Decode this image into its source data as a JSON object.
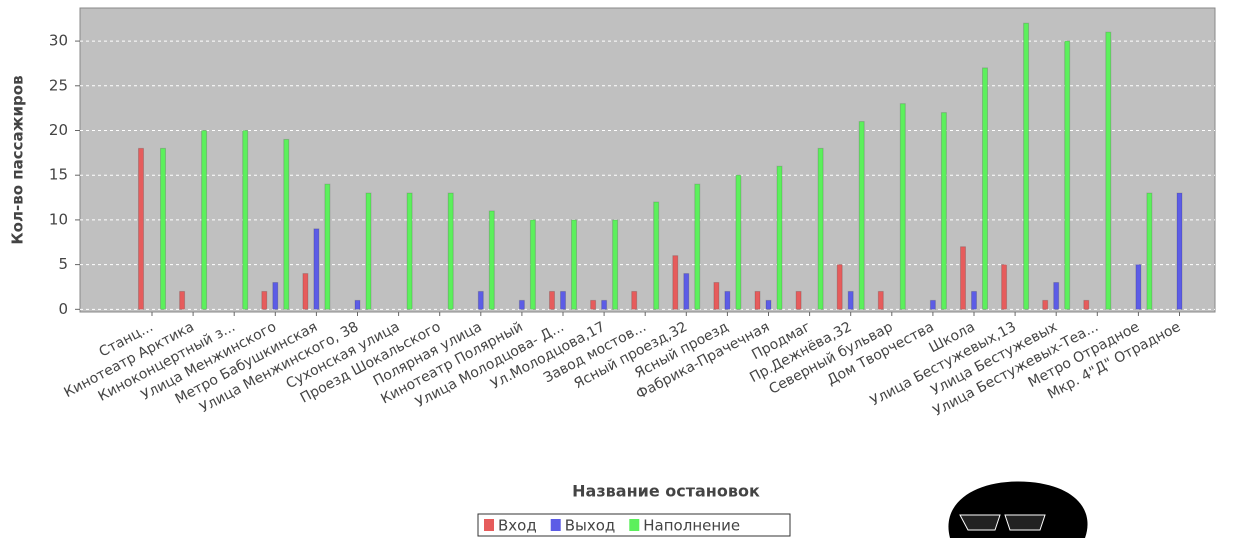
{
  "chart_data": {
    "type": "bar",
    "x_label": "Название остановок",
    "y_label": "Кол-во пассажиров",
    "categories": [
      "Станц...",
      "Кинотеатр Арктика",
      "Киноконцертный з...",
      "Улица Менжинского",
      "Метро Бабушкинская",
      "Улица Менжинского, 38",
      "Сухонская улица",
      "Проезд Шокальского",
      "Полярная улица",
      "Кинотеатр Полярный",
      "Улица Молодцова- Д...",
      "Ул.Молодцова,17",
      "Завод мостов...",
      "Ясный проезд,32",
      "Ясный проезд",
      "Фабрика-Прачечная",
      "Продмаг",
      "Пр.Дежнёва,32",
      "Северный бульвар",
      "Дом Творчества",
      "Школа",
      "Улица Бестужевых,13",
      "Улица Бестужевых",
      "Улица Бестужевых-Теа...",
      "Метро Отрадное",
      "Мкр. 4\"Д\" Отрадное"
    ],
    "series": [
      {
        "name": "Вход",
        "color": "#e65c5c",
        "values": [
          18,
          2,
          0,
          2,
          4,
          0,
          0,
          0,
          0,
          0,
          2,
          1,
          2,
          6,
          3,
          2,
          2,
          5,
          2,
          0,
          7,
          5,
          1,
          1,
          0,
          0
        ]
      },
      {
        "name": "Выход",
        "color": "#5c5ce6",
        "values": [
          0,
          0,
          0,
          3,
          9,
          1,
          0,
          0,
          2,
          1,
          2,
          1,
          0,
          4,
          2,
          1,
          0,
          2,
          0,
          1,
          2,
          0,
          3,
          0,
          5,
          13
        ]
      },
      {
        "name": "Наполнение",
        "color": "#5cf05c",
        "values": [
          18,
          20,
          20,
          19,
          14,
          13,
          13,
          13,
          11,
          10,
          10,
          10,
          12,
          14,
          15,
          16,
          18,
          21,
          23,
          22,
          27,
          32,
          30,
          31,
          13,
          0
        ]
      }
    ],
    "ylim": [
      -0.3,
      33.7
    ],
    "yticks": [
      0,
      5,
      10,
      15,
      20,
      25,
      30
    ],
    "grid": true,
    "legend": "bottom"
  }
}
